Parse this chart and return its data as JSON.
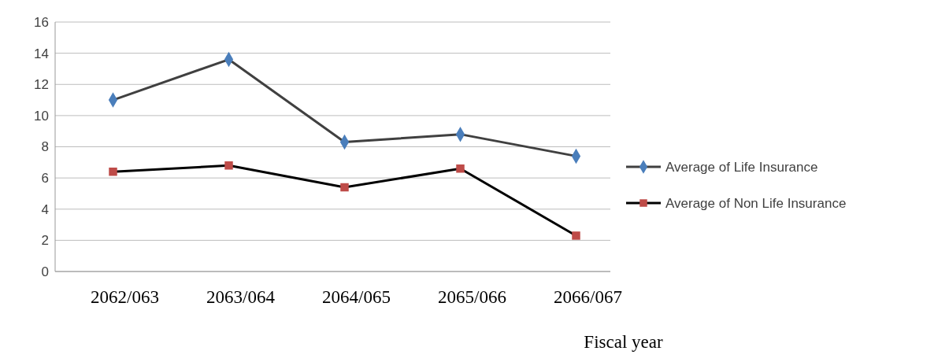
{
  "chart_data": {
    "type": "line",
    "xlabel": "Fiscal year",
    "categories": [
      "2062/063",
      "2063/064",
      "2064/065",
      "2065/066",
      "2066/067"
    ],
    "series": [
      {
        "name": "Average of Life Insurance",
        "color": "#4a7ebb",
        "marker": "diamond",
        "values": [
          11.0,
          13.6,
          8.3,
          8.8,
          7.4
        ]
      },
      {
        "name": "Average of Non Life Insurance",
        "color": "#be4b48",
        "marker": "square",
        "values": [
          6.4,
          6.8,
          5.4,
          6.6,
          2.3
        ]
      }
    ],
    "ylim": [
      0,
      16
    ],
    "yticks": [
      0,
      2,
      4,
      6,
      8,
      10,
      12,
      14,
      16
    ],
    "grid": "y",
    "legend": "right"
  }
}
